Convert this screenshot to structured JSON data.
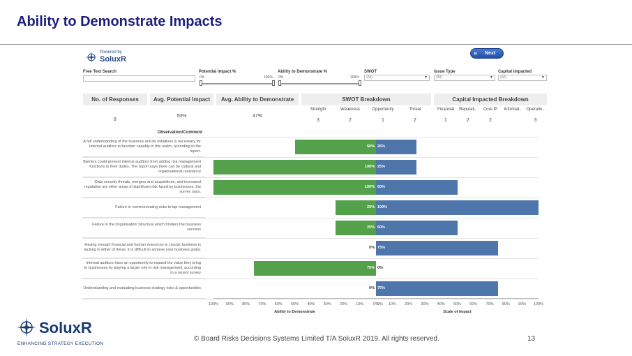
{
  "slide": {
    "title": "Ability to Demonstrate Impacts",
    "copyright": "© Board Risks Decisions Systems Limited T/A SoluxR 2019. All rights reserved.",
    "page_number": "13",
    "logo_brand": "SoluxR",
    "logo_tagline": "ENHANCING STRATEGY EXECUTION"
  },
  "dashboard": {
    "powered_by": "Powered by",
    "powered_brand": "SoluxR",
    "next_label": "Next",
    "filters": {
      "free_text_label": "Free Text Search",
      "free_text_value": "",
      "potential_label": "Potential Impact %",
      "potential_min": "0%",
      "potential_max": "100%",
      "ability_label": "Ability to Demonstrate %",
      "ability_min": "0%",
      "ability_max": "100%",
      "swot_label": "SWOT",
      "swot_value": "(All)",
      "issue_label": "Issue Type",
      "issue_value": "(All)",
      "capital_label": "Capital Impacted",
      "capital_value": "(All)"
    },
    "kpis": {
      "responses_label": "No. of Responses",
      "responses_value": "8",
      "potential_label": "Avg. Potential Impact",
      "potential_value": "50%",
      "ability_label": "Avg. Ability to Demonstrate",
      "ability_value": "47%"
    },
    "swot": {
      "label": "SWOT Breakdown",
      "columns": [
        "Strength",
        "Weakness",
        "Opportunity",
        "Threat"
      ],
      "values": [
        "3",
        "2",
        "1",
        "2"
      ]
    },
    "capital": {
      "label": "Capital Impacted Breakdown",
      "columns": [
        "Financial",
        "Reputati..",
        "Core IP",
        "Informat..",
        "Operatio.."
      ],
      "values": [
        "1",
        "2",
        "2",
        "",
        "3"
      ]
    },
    "observation_header": "Observation/Comment"
  },
  "chart_data": {
    "type": "bar",
    "categories": [
      "A full understanding of the business and its initiatives is necessary for internal auditors to function capably in this realm, according to the report.",
      "Barriers could prevent internal auditors from adding risk management functions to their duties. The report says there can be cultural and organisational resistance",
      "Data security threats, mergers and acquisitions, and increased regulation are other areas of significant risk faced by businesses, the survey says.",
      "Failure in communicating risks to top management",
      "Failure in the Organisation Structure which hinders the business success",
      "Having enough financial and human resources is crucial; business is lacking in either of these, it is difficult to achieve your business goals.",
      "Internal auditors have an opportunity to expand the value they bring to businesses by playing a larger role in risk management, according to a recent survey",
      "Understanding and evaluating business strategy risks & opportunities"
    ],
    "series": [
      {
        "name": "Ability to Demonstrate",
        "values": [
          50,
          100,
          100,
          25,
          25,
          0,
          75,
          0
        ],
        "color": "#54a14b"
      },
      {
        "name": "Scale of Impact",
        "values": [
          25,
          25,
          50,
          100,
          50,
          75,
          0,
          75
        ],
        "color": "#4e76aa"
      }
    ],
    "left_ticks": [
      "100%",
      "90%",
      "80%",
      "70%",
      "60%",
      "50%",
      "40%",
      "30%",
      "20%",
      "10%",
      "0%"
    ],
    "right_ticks": [
      "0%",
      "10%",
      "20%",
      "30%",
      "40%",
      "50%",
      "60%",
      "70%",
      "80%",
      "90%",
      "100%"
    ],
    "left_xlabel": "Ability to Demonstrate",
    "right_xlabel": "Scale of Impact",
    "xlim": [
      0,
      100
    ]
  }
}
